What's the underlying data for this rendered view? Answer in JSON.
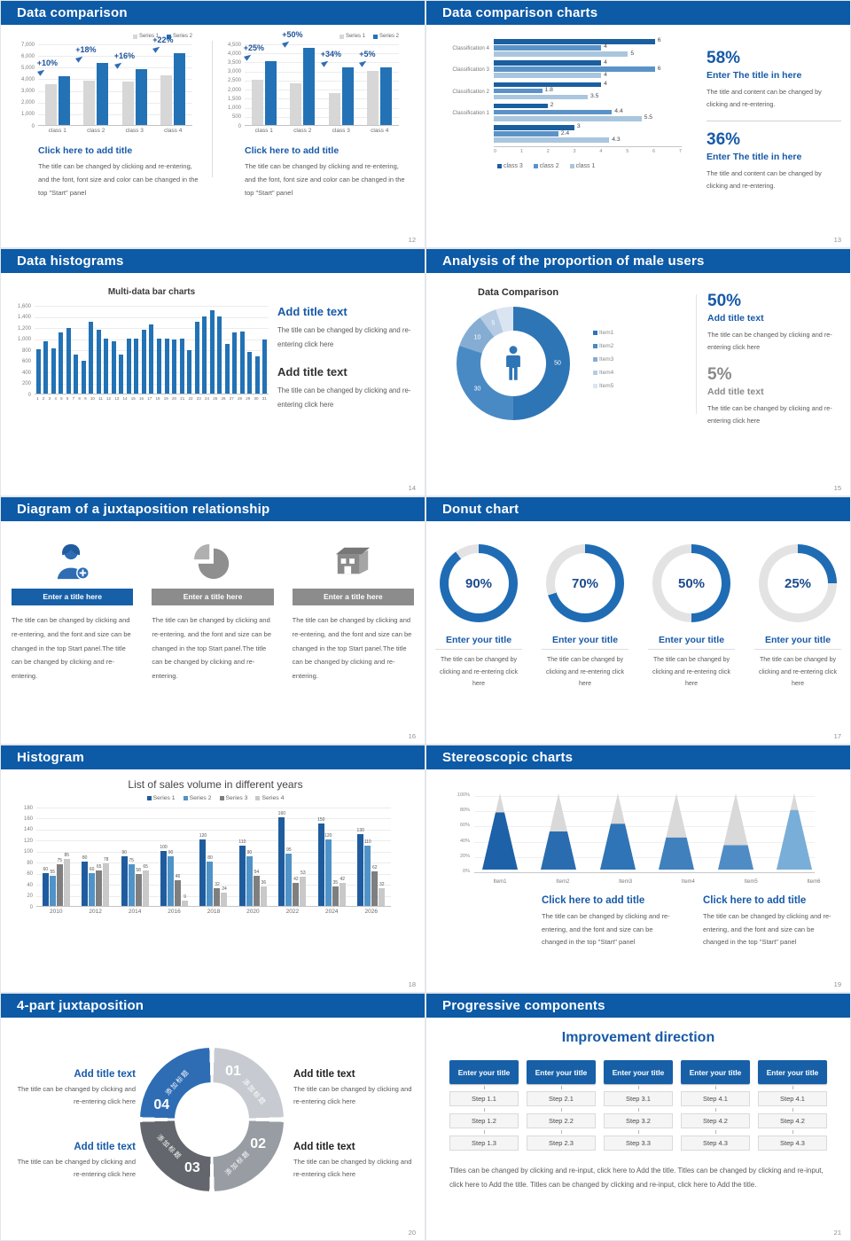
{
  "colors": {
    "header_bg": "#0d5aa6",
    "accent": "#2e75b6",
    "title_blue": "#175aa8",
    "body_gray": "#595959",
    "page_bg": "#e7ebf0",
    "s12_series": [
      "#d7d7d7",
      "#2272b5"
    ],
    "s13_series": [
      "#1a5fa0",
      "#5b93c8",
      "#a9c6de"
    ],
    "s14_bar": "#2272b5",
    "s15_segments": [
      "#2e75b6",
      "#4a8ac4",
      "#85add3",
      "#b6cce4",
      "#dbe5f1"
    ],
    "s17_ring": "#1f6cb4",
    "s17_rest": "#e3e3e3",
    "s18_series": [
      "#1f5c9e",
      "#4f93c8",
      "#7f7f7f",
      "#c9c9c9"
    ],
    "s19_fills": [
      "#1d61a8",
      "#2a6cb0",
      "#2f74b6",
      "#3f80bd",
      "#4f8cc6",
      "#79aed8"
    ],
    "s19_gray": "#d9d9d9",
    "s20_segments": [
      "#c7cbd1",
      "#989ca3",
      "#63666c",
      "#2e6db4"
    ]
  },
  "slides": {
    "s12": {
      "header": "Data comparison",
      "page_num": "12",
      "legend": [
        "Series 1",
        "Series 2"
      ],
      "charts": [
        {
          "type": "bar",
          "ymax": 7000,
          "yticks": [
            "7,000",
            "6,000",
            "5,000",
            "4,000",
            "3,000",
            "2,000",
            "1,000",
            "0"
          ],
          "categories": [
            "class 1",
            "class 2",
            "class 3",
            "class 4"
          ],
          "series": [
            {
              "name": "Series 1",
              "values": [
                3500,
                3800,
                3700,
                4300
              ]
            },
            {
              "name": "Series 2",
              "values": [
                4200,
                5300,
                4800,
                6200
              ]
            }
          ],
          "annotations": [
            "+10%",
            "+18%",
            "+16%",
            "+22%"
          ]
        },
        {
          "type": "bar",
          "ymax": 4500,
          "yticks": [
            "4,500",
            "4,000",
            "3,500",
            "3,000",
            "2,500",
            "2,000",
            "1,500",
            "1,000",
            "500",
            "0"
          ],
          "categories": [
            "class 1",
            "class 2",
            "class 3",
            "class 4"
          ],
          "series": [
            {
              "name": "Series 1",
              "values": [
                2500,
                2300,
                1750,
                3000
              ]
            },
            {
              "name": "Series 2",
              "values": [
                3500,
                4250,
                3200,
                3200
              ]
            }
          ],
          "annotations": [
            "+25%",
            "+50%",
            "+34%",
            "+5%"
          ]
        }
      ],
      "blocks": [
        {
          "title": "Click here to add title",
          "body": "The title can be changed by clicking and re-entering, and the font, font size and color can be changed in the top \"Start\" panel"
        },
        {
          "title": "Click here to add title",
          "body": "The title can be changed by clicking and re-entering, and the font, font size and color can be changed in the top \"Start\" panel"
        }
      ]
    },
    "s13": {
      "header": "Data comparison charts",
      "page_num": "13",
      "chart": {
        "type": "bar-horizontal",
        "xmax": 7,
        "xticks": [
          "0",
          "1",
          "2",
          "3",
          "4",
          "5",
          "6",
          "7"
        ],
        "legend": [
          "class 3",
          "class 2",
          "class 1"
        ],
        "groups": [
          {
            "label": "Classification 4",
            "values": [
              6,
              4,
              5
            ]
          },
          {
            "label": "Classification 3",
            "values": [
              4,
              6,
              4
            ]
          },
          {
            "label": "Classification 2",
            "values": [
              4,
              1.8,
              3.5
            ]
          },
          {
            "label": "Classification 1",
            "values": [
              2,
              4.4,
              5.5
            ]
          },
          {
            "label": "",
            "values": [
              3,
              2.4,
              4.3
            ]
          }
        ]
      },
      "stats": [
        {
          "pct": "58%",
          "title": "Enter The title in here",
          "body": "The title and content can be changed by clicking and re-entering."
        },
        {
          "pct": "36%",
          "title": "Enter The title in here",
          "body": "The title and content can be changed by clicking and re-entering."
        }
      ]
    },
    "s14": {
      "header": "Data histograms",
      "page_num": "14",
      "chart": {
        "type": "bar",
        "title": "Multi-data bar charts",
        "ymax": 1600,
        "yticks": [
          "1,600",
          "1,400",
          "1,200",
          "1,000",
          "800",
          "600",
          "400",
          "200",
          "0"
        ],
        "xlabels": [
          "1",
          "2",
          "3",
          "4",
          "5",
          "6",
          "7",
          "8",
          "9",
          "10",
          "11",
          "12",
          "13",
          "14",
          "15",
          "16",
          "17",
          "18",
          "19",
          "20",
          "21",
          "22",
          "23",
          "24",
          "25",
          "26",
          "27",
          "28",
          "29",
          "30",
          "31"
        ],
        "values": [
          800,
          950,
          820,
          1100,
          1180,
          700,
          600,
          1300,
          1150,
          1000,
          950,
          700,
          1000,
          1000,
          1150,
          1250,
          1000,
          1000,
          980,
          1000,
          780,
          1300,
          1400,
          1500,
          1400,
          900,
          1100,
          1120,
          760,
          680,
          980
        ]
      },
      "blocks": [
        {
          "title": "Add title text",
          "body": "The title can be changed by clicking and re-entering click here"
        },
        {
          "title": "Add title text",
          "body": "The title can be changed by clicking and re-entering click here"
        }
      ]
    },
    "s15": {
      "header": "Analysis of the proportion of male users",
      "page_num": "15",
      "chart": {
        "type": "pie",
        "title": "Data Comparison",
        "segments": [
          {
            "label": "Item1",
            "value": 50,
            "shown": "50"
          },
          {
            "label": "Item2",
            "value": 30,
            "shown": "30"
          },
          {
            "label": "Item3",
            "value": 10,
            "shown": "10"
          },
          {
            "label": "Item4",
            "value": 5,
            "shown": "5"
          },
          {
            "label": "Item5",
            "value": 5,
            "shown": ""
          }
        ]
      },
      "stats": [
        {
          "pct": "50%",
          "title": "Add title text",
          "body": "The title can be changed by clicking and re-entering click here"
        },
        {
          "pct": "5%",
          "title": "Add title text",
          "body": "The title can be changed by clicking and re-entering click here"
        }
      ]
    },
    "s16": {
      "header": "Diagram of a juxtaposition relationship",
      "page_num": "16",
      "items": [
        {
          "icon": "nurse-icon",
          "title": "Enter a title here",
          "body": "The title can be changed by clicking and re-entering, and the font and size can be changed in the top Start panel.The title can be changed by clicking and re-entering."
        },
        {
          "icon": "pie-icon",
          "title": "Enter a title here",
          "body": "The title can be changed by clicking and re-entering, and the font and size can be changed in the top Start panel.The title can be changed by clicking and re-entering."
        },
        {
          "icon": "building-icon",
          "title": "Enter a title here",
          "body": "The title can be changed by clicking and re-entering, and the font and size can be changed in the top Start panel.The title can be changed by clicking and re-entering."
        }
      ]
    },
    "s17": {
      "header": "Donut chart",
      "page_num": "17",
      "rings": [
        {
          "pct": 90,
          "pct_label": "90%",
          "title": "Enter your title",
          "body": "The title can be changed by clicking and re-entering click here"
        },
        {
          "pct": 70,
          "pct_label": "70%",
          "title": "Enter your title",
          "body": "The title can be changed by clicking and re-entering click here"
        },
        {
          "pct": 50,
          "pct_label": "50%",
          "title": "Enter your title",
          "body": "The title can be changed by clicking and re-entering click here"
        },
        {
          "pct": 25,
          "pct_label": "25%",
          "title": "Enter your title",
          "body": "The title can be changed by clicking and re-entering click here"
        }
      ]
    },
    "s18": {
      "header": "Histogram",
      "page_num": "18",
      "chart": {
        "type": "bar",
        "title": "List of sales volume in different years",
        "legend": [
          "Series 1",
          "Series 2",
          "Series 3",
          "Series 4"
        ],
        "ymax": 180,
        "yticks": [
          "180",
          "160",
          "140",
          "120",
          "100",
          "80",
          "60",
          "40",
          "20",
          "0"
        ],
        "categories": [
          "2010",
          "2012",
          "2014",
          "2016",
          "2018",
          "2020",
          "2022",
          "2024",
          "2026"
        ],
        "series": [
          {
            "name": "Series 1",
            "values": [
              60,
              80,
              90,
              100,
              120,
              110,
              160,
              150,
              130
            ]
          },
          {
            "name": "Series 2",
            "values": [
              55,
              60,
              75,
              90,
              80,
              90,
              95,
              120,
              110
            ]
          },
          {
            "name": "Series 3",
            "values": [
              75,
              65,
              58,
              46,
              32,
              54,
              42,
              35,
              62
            ]
          },
          {
            "name": "Series 4",
            "values": [
              85,
              78,
              65,
              9,
              24,
              36,
              53,
              42,
              32
            ]
          }
        ]
      }
    },
    "s19": {
      "header": "Stereoscopic charts",
      "page_num": "19",
      "chart": {
        "type": "pyramid",
        "yticks": [
          "100%",
          "80%",
          "60%",
          "40%",
          "20%",
          "0%"
        ],
        "items": [
          {
            "label": "Item1",
            "value": 75
          },
          {
            "label": "Item2",
            "value": 50
          },
          {
            "label": "Item3",
            "value": 60
          },
          {
            "label": "Item4",
            "value": 42
          },
          {
            "label": "Item5",
            "value": 32
          },
          {
            "label": "Item6",
            "value": 78
          }
        ]
      },
      "blocks": [
        {
          "title": "Click here to add title",
          "body": "The title can be changed by clicking and re-entering, and the font and size can be changed in the top \"Start\" panel"
        },
        {
          "title": "Click here to add title",
          "body": "The title can be changed by clicking and re-entering, and the font and size can be changed in the top \"Start\" panel"
        }
      ]
    },
    "s20": {
      "header": "4-part juxtaposition",
      "page_num": "20",
      "segments": [
        {
          "num": "01",
          "label": "添加标题"
        },
        {
          "num": "02",
          "label": "添加标题"
        },
        {
          "num": "03",
          "label": "添加标题"
        },
        {
          "num": "04",
          "label": "添加标题"
        }
      ],
      "blocks": [
        {
          "title": "Add title text",
          "body": "The title can be changed by clicking and re-entering click here"
        },
        {
          "title": "Add title text",
          "body": "The title can be changed by clicking and re-entering click here"
        },
        {
          "title": "Add title text",
          "body": "The title can be changed by clicking and re-entering click here"
        },
        {
          "title": "Add title text",
          "body": "The title can be changed by clicking and re-entering click here"
        }
      ]
    },
    "s21": {
      "header": "Progressive components",
      "page_num": "21",
      "heading": "Improvement direction",
      "columns": [
        {
          "header": "Enter your title",
          "steps": [
            "Step 1.1",
            "Step 1.2",
            "Step 1.3"
          ]
        },
        {
          "header": "Enter your title",
          "steps": [
            "Step 2.1",
            "Step 2.2",
            "Step 2.3"
          ]
        },
        {
          "header": "Enter your title",
          "steps": [
            "Step 3.1",
            "Step 3.2",
            "Step 3.3"
          ]
        },
        {
          "header": "Enter your title",
          "steps": [
            "Step 4.1",
            "Step 4.2",
            "Step 4.3"
          ]
        },
        {
          "header": "Enter your title",
          "steps": [
            "Step 4.1",
            "Step 4.2",
            "Step 4.3"
          ]
        }
      ],
      "footer": "Titles can be changed by clicking and re-input, click here to Add the title. Titles can be changed by clicking and re-input, click here to Add the title. Titles can be changed by clicking and re-input, click here to Add the title."
    }
  }
}
